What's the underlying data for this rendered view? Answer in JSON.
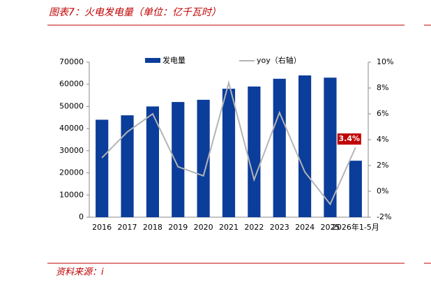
{
  "title": "图表7：火电发电量（单位：亿千瓦时）",
  "source": "资料来源：i",
  "chart_data": {
    "type": "bar-line",
    "categories": [
      "2016",
      "2017",
      "2018",
      "2019",
      "2020",
      "2021",
      "2022",
      "2023",
      "2024",
      "2025",
      "2026年1-5月"
    ],
    "series": [
      {
        "name": "发电量",
        "color": "#0b3d9a",
        "values": [
          44000,
          46000,
          50000,
          52000,
          53000,
          58000,
          59000,
          62500,
          64000,
          63000,
          25500
        ]
      },
      {
        "name": "yoy（右轴）",
        "color": "#b4b4b4",
        "axis": "y2",
        "values": [
          2.6,
          4.6,
          6.0,
          1.9,
          1.2,
          8.4,
          0.9,
          6.1,
          1.5,
          -1.0,
          3.4
        ],
        "value_labels": [
          null,
          null,
          null,
          null,
          null,
          null,
          null,
          null,
          null,
          null,
          "3.4%"
        ]
      }
    ],
    "ylim": [
      0,
      70000
    ],
    "yticks": [
      0,
      10000,
      20000,
      30000,
      40000,
      50000,
      60000,
      70000
    ],
    "y2lim": [
      -2,
      10
    ],
    "y2ticks": [
      {
        "value": -2,
        "label": "-2%"
      },
      {
        "value": 0,
        "label": "0%"
      },
      {
        "value": 2,
        "label": "2%"
      },
      {
        "value": 4,
        "label": "4%"
      },
      {
        "value": 6,
        "label": "6%"
      },
      {
        "value": 8,
        "label": "8%"
      },
      {
        "value": 10,
        "label": "10%"
      }
    ],
    "label_color": "#c00000"
  }
}
